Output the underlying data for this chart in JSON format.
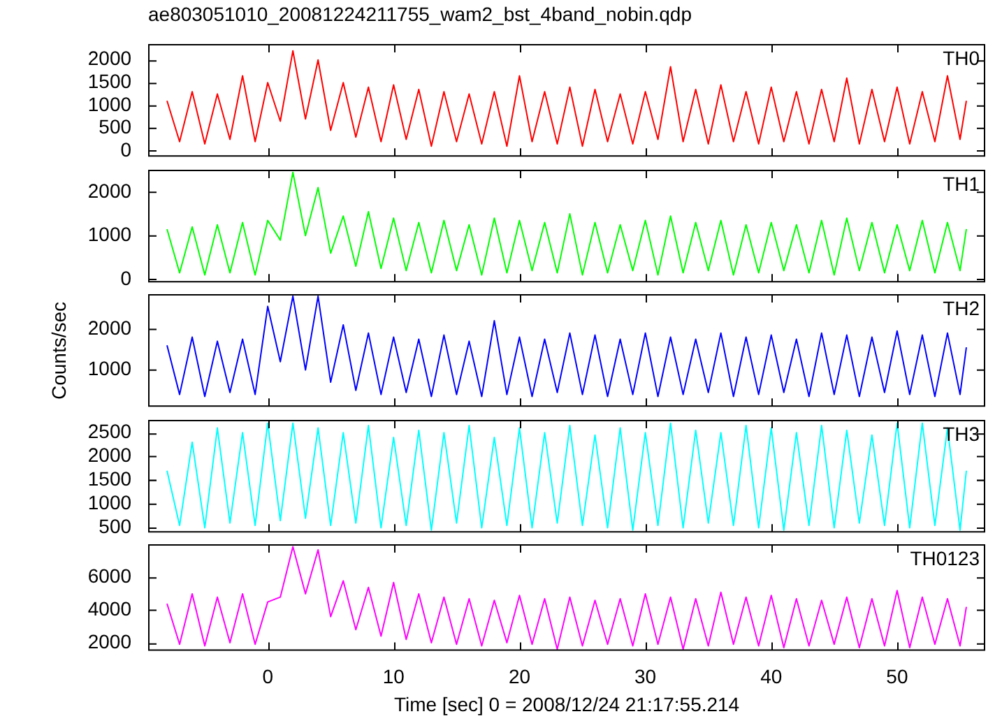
{
  "chart_data": [
    {
      "type": "line",
      "title": "ae803051010_20081224211755_wam2_bst_4band_nobin.qdp",
      "x": [
        -8,
        -7,
        -6,
        -5,
        -4,
        -3,
        -2,
        -1,
        0,
        1,
        2,
        3,
        4,
        5,
        6,
        7,
        8,
        9,
        10,
        11,
        12,
        13,
        14,
        15,
        16,
        17,
        18,
        19,
        20,
        21,
        22,
        23,
        24,
        25,
        26,
        27,
        28,
        29,
        30,
        31,
        32,
        33,
        34,
        35,
        36,
        37,
        38,
        39,
        40,
        41,
        42,
        43,
        44,
        45,
        46,
        47,
        48,
        49,
        50,
        51,
        52,
        53,
        54,
        55,
        55.5
      ],
      "series": [
        {
          "name": "TH0",
          "color": "#ff0000",
          "values": [
            1100,
            200,
            1300,
            150,
            1250,
            250,
            1650,
            200,
            1500,
            650,
            2200,
            700,
            2000,
            450,
            1500,
            300,
            1400,
            200,
            1450,
            250,
            1350,
            100,
            1300,
            200,
            1250,
            150,
            1300,
            100,
            1650,
            200,
            1300,
            150,
            1400,
            100,
            1350,
            200,
            1250,
            150,
            1300,
            250,
            1850,
            200,
            1350,
            150,
            1450,
            200,
            1300,
            150,
            1400,
            200,
            1300,
            150,
            1350,
            200,
            1600,
            150,
            1350,
            200,
            1400,
            150,
            1300,
            200,
            1650,
            250,
            1100
          ]
        }
      ],
      "xlim": [
        -9.5,
        57
      ],
      "xticks": [
        0,
        10,
        20,
        30,
        40,
        50
      ],
      "ylim": [
        -130,
        2350
      ],
      "yticks": [
        0,
        500,
        1000,
        1500,
        2000
      ],
      "tick_labels": "y",
      "marker": "none",
      "line_style": "solid"
    },
    {
      "type": "line",
      "x": [
        -8,
        -7,
        -6,
        -5,
        -4,
        -3,
        -2,
        -1,
        0,
        1,
        2,
        3,
        4,
        5,
        6,
        7,
        8,
        9,
        10,
        11,
        12,
        13,
        14,
        15,
        16,
        17,
        18,
        19,
        20,
        21,
        22,
        23,
        24,
        25,
        26,
        27,
        28,
        29,
        30,
        31,
        32,
        33,
        34,
        35,
        36,
        37,
        38,
        39,
        40,
        41,
        42,
        43,
        44,
        45,
        46,
        47,
        48,
        49,
        50,
        51,
        52,
        53,
        54,
        55,
        55.5
      ],
      "series": [
        {
          "name": "TH1",
          "color": "#00ff00",
          "values": [
            1150,
            150,
            1200,
            100,
            1250,
            150,
            1300,
            100,
            1350,
            900,
            2450,
            1000,
            2100,
            600,
            1450,
            300,
            1550,
            250,
            1400,
            200,
            1300,
            150,
            1350,
            200,
            1250,
            100,
            1400,
            150,
            1350,
            200,
            1300,
            150,
            1500,
            100,
            1300,
            150,
            1250,
            200,
            1350,
            100,
            1450,
            150,
            1300,
            200,
            1350,
            100,
            1250,
            150,
            1300,
            200,
            1250,
            150,
            1350,
            100,
            1400,
            200,
            1300,
            150,
            1250,
            200,
            1350,
            150,
            1300,
            200,
            1150
          ]
        }
      ],
      "xlim": [
        -9.5,
        57
      ],
      "xticks": [
        0,
        10,
        20,
        30,
        40,
        50
      ],
      "ylim": [
        -70,
        2510
      ],
      "yticks": [
        0,
        1000,
        2000
      ],
      "tick_labels": "y",
      "marker": "none",
      "line_style": "solid"
    },
    {
      "type": "line",
      "ylabel": "Counts/sec",
      "x": [
        -8,
        -7,
        -6,
        -5,
        -4,
        -3,
        -2,
        -1,
        0,
        1,
        2,
        3,
        4,
        5,
        6,
        7,
        8,
        9,
        10,
        11,
        12,
        13,
        14,
        15,
        16,
        17,
        18,
        19,
        20,
        21,
        22,
        23,
        24,
        25,
        26,
        27,
        28,
        29,
        30,
        31,
        32,
        33,
        34,
        35,
        36,
        37,
        38,
        39,
        40,
        41,
        42,
        43,
        44,
        45,
        46,
        47,
        48,
        49,
        50,
        51,
        52,
        53,
        54,
        55,
        55.5
      ],
      "series": [
        {
          "name": "TH2",
          "color": "#0000ff",
          "values": [
            1600,
            400,
            1800,
            350,
            1700,
            450,
            1750,
            400,
            2550,
            1200,
            2800,
            1000,
            2800,
            700,
            2100,
            500,
            1900,
            400,
            1800,
            450,
            1750,
            350,
            1850,
            400,
            1700,
            350,
            2200,
            400,
            1800,
            350,
            1750,
            450,
            1900,
            400,
            1850,
            350,
            1750,
            400,
            1900,
            350,
            1800,
            400,
            1750,
            450,
            1900,
            350,
            1800,
            400,
            1850,
            450,
            1750,
            350,
            1900,
            400,
            1850,
            350,
            1800,
            450,
            1950,
            400,
            1850,
            350,
            1900,
            400,
            1550
          ]
        }
      ],
      "xlim": [
        -9.5,
        57
      ],
      "xticks": [
        0,
        10,
        20,
        30,
        40,
        50
      ],
      "ylim": [
        100,
        2850
      ],
      "yticks": [
        1000,
        2000
      ],
      "tick_labels": "y",
      "marker": "none",
      "line_style": "solid"
    },
    {
      "type": "line",
      "x": [
        -8,
        -7,
        -6,
        -5,
        -4,
        -3,
        -2,
        -1,
        0,
        1,
        2,
        3,
        4,
        5,
        6,
        7,
        8,
        9,
        10,
        11,
        12,
        13,
        14,
        15,
        16,
        17,
        18,
        19,
        20,
        21,
        22,
        23,
        24,
        25,
        26,
        27,
        28,
        29,
        30,
        31,
        32,
        33,
        34,
        35,
        36,
        37,
        38,
        39,
        40,
        41,
        42,
        43,
        44,
        45,
        46,
        47,
        48,
        49,
        50,
        51,
        52,
        53,
        54,
        55,
        55.5
      ],
      "series": [
        {
          "name": "TH3",
          "color": "#00ffff",
          "values": [
            1700,
            550,
            2300,
            500,
            2600,
            600,
            2500,
            550,
            2700,
            650,
            2700,
            700,
            2600,
            550,
            2500,
            600,
            2650,
            500,
            2400,
            550,
            2550,
            450,
            2500,
            600,
            2650,
            500,
            2400,
            550,
            2600,
            500,
            2500,
            600,
            2650,
            550,
            2450,
            500,
            2600,
            450,
            2500,
            550,
            2700,
            500,
            2550,
            600,
            2500,
            550,
            2650,
            500,
            2600,
            450,
            2500,
            550,
            2650,
            500,
            2550,
            600,
            2450,
            550,
            2700,
            500,
            2700,
            550,
            2600,
            450,
            1700
          ]
        }
      ],
      "xlim": [
        -9.5,
        57
      ],
      "xticks": [
        0,
        10,
        20,
        30,
        40,
        50
      ],
      "ylim": [
        400,
        2770
      ],
      "yticks": [
        500,
        1000,
        1500,
        2000,
        2500
      ],
      "tick_labels": "y",
      "marker": "none",
      "line_style": "solid"
    },
    {
      "type": "line",
      "xlabel": "Time [sec] 0 = 2008/12/24 21:17:55.214",
      "x": [
        -8,
        -7,
        -6,
        -5,
        -4,
        -3,
        -2,
        -1,
        0,
        1,
        2,
        3,
        4,
        5,
        6,
        7,
        8,
        9,
        10,
        11,
        12,
        13,
        14,
        15,
        16,
        17,
        18,
        19,
        20,
        21,
        22,
        23,
        24,
        25,
        26,
        27,
        28,
        29,
        30,
        31,
        32,
        33,
        34,
        35,
        36,
        37,
        38,
        39,
        40,
        41,
        42,
        43,
        44,
        45,
        46,
        47,
        48,
        49,
        50,
        51,
        52,
        53,
        54,
        55,
        55.5
      ],
      "series": [
        {
          "name": "TH0123",
          "color": "#ff00ff",
          "values": [
            4400,
            1900,
            5000,
            1800,
            4800,
            2000,
            5000,
            1900,
            4500,
            4800,
            7900,
            5000,
            7700,
            3600,
            5800,
            2800,
            5400,
            2400,
            5700,
            2200,
            5000,
            2000,
            4800,
            1900,
            4700,
            1800,
            4600,
            2000,
            4900,
            1900,
            4700,
            1600,
            4800,
            1800,
            4600,
            1900,
            4700,
            1800,
            5000,
            1900,
            4800,
            1600,
            4700,
            1800,
            5100,
            1900,
            4800,
            1800,
            4900,
            1700,
            4700,
            1800,
            4600,
            1900,
            4800,
            1700,
            4700,
            1800,
            5200,
            1700,
            4800,
            1900,
            4700,
            1800,
            4200
          ]
        }
      ],
      "xlim": [
        -9.5,
        57
      ],
      "xticks": [
        0,
        10,
        20,
        30,
        40,
        50
      ],
      "ylim": [
        1500,
        8050
      ],
      "yticks": [
        2000,
        4000,
        6000
      ],
      "marker": "none",
      "line_style": "solid"
    }
  ]
}
